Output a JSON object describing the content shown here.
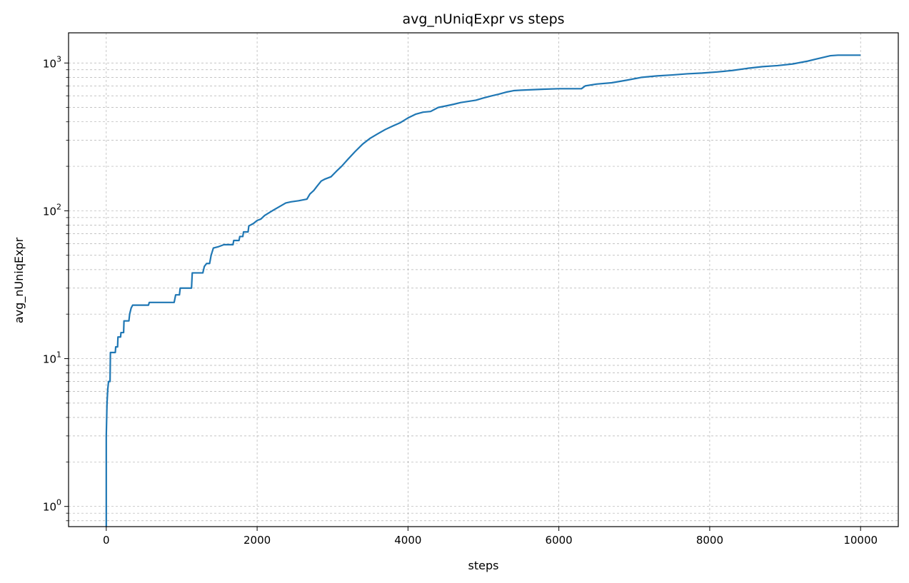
{
  "chart_data": {
    "type": "line",
    "title": "avg_nUniqExpr vs steps",
    "xlabel": "steps",
    "ylabel": "avg_nUniqExpr",
    "xlim": [
      -500,
      10500
    ],
    "ylim": [
      0.73,
      1600
    ],
    "yscale": "log",
    "grid": true,
    "x_ticks": [
      0,
      2000,
      4000,
      6000,
      8000,
      10000
    ],
    "x_tick_labels": [
      "0",
      "2000",
      "4000",
      "6000",
      "8000",
      "10000"
    ],
    "y_ticks": [
      1,
      10,
      100,
      1000
    ],
    "y_tick_labels": [
      {
        "base": "10",
        "exp": "0"
      },
      {
        "base": "10",
        "exp": "1"
      },
      {
        "base": "10",
        "exp": "2"
      },
      {
        "base": "10",
        "exp": "3"
      }
    ],
    "series": [
      {
        "color": "#1f77b4",
        "points": [
          [
            0,
            0.73
          ],
          [
            0,
            3
          ],
          [
            10,
            5
          ],
          [
            20,
            6.2
          ],
          [
            30,
            7
          ],
          [
            50,
            7
          ],
          [
            55,
            11
          ],
          [
            120,
            11
          ],
          [
            125,
            12
          ],
          [
            150,
            12
          ],
          [
            155,
            14
          ],
          [
            190,
            14
          ],
          [
            195,
            15
          ],
          [
            230,
            15
          ],
          [
            235,
            18
          ],
          [
            300,
            18
          ],
          [
            310,
            20
          ],
          [
            330,
            22
          ],
          [
            350,
            23
          ],
          [
            560,
            23
          ],
          [
            570,
            24
          ],
          [
            900,
            24
          ],
          [
            920,
            27
          ],
          [
            970,
            27
          ],
          [
            980,
            30
          ],
          [
            1130,
            30
          ],
          [
            1140,
            38
          ],
          [
            1280,
            38
          ],
          [
            1300,
            42
          ],
          [
            1330,
            44
          ],
          [
            1370,
            44
          ],
          [
            1390,
            50
          ],
          [
            1420,
            56
          ],
          [
            1480,
            57
          ],
          [
            1560,
            59
          ],
          [
            1680,
            59
          ],
          [
            1690,
            63
          ],
          [
            1760,
            63
          ],
          [
            1770,
            67
          ],
          [
            1810,
            67
          ],
          [
            1820,
            72
          ],
          [
            1880,
            72
          ],
          [
            1890,
            79
          ],
          [
            1950,
            82
          ],
          [
            2000,
            86
          ],
          [
            2050,
            88
          ],
          [
            2100,
            93
          ],
          [
            2200,
            100
          ],
          [
            2300,
            107
          ],
          [
            2380,
            113
          ],
          [
            2450,
            115
          ],
          [
            2550,
            117
          ],
          [
            2660,
            120
          ],
          [
            2700,
            130
          ],
          [
            2750,
            137
          ],
          [
            2800,
            148
          ],
          [
            2850,
            159
          ],
          [
            2900,
            164
          ],
          [
            2980,
            170
          ],
          [
            3050,
            185
          ],
          [
            3120,
            200
          ],
          [
            3200,
            222
          ],
          [
            3300,
            252
          ],
          [
            3400,
            283
          ],
          [
            3500,
            310
          ],
          [
            3600,
            332
          ],
          [
            3700,
            355
          ],
          [
            3800,
            375
          ],
          [
            3900,
            395
          ],
          [
            4000,
            425
          ],
          [
            4100,
            450
          ],
          [
            4200,
            465
          ],
          [
            4300,
            470
          ],
          [
            4400,
            500
          ],
          [
            4500,
            512
          ],
          [
            4600,
            525
          ],
          [
            4700,
            540
          ],
          [
            4800,
            550
          ],
          [
            4900,
            560
          ],
          [
            5000,
            580
          ],
          [
            5100,
            598
          ],
          [
            5200,
            615
          ],
          [
            5300,
            635
          ],
          [
            5400,
            650
          ],
          [
            5500,
            655
          ],
          [
            5800,
            665
          ],
          [
            6000,
            670
          ],
          [
            6300,
            670
          ],
          [
            6350,
            700
          ],
          [
            6500,
            720
          ],
          [
            6700,
            735
          ],
          [
            6900,
            765
          ],
          [
            7100,
            800
          ],
          [
            7300,
            818
          ],
          [
            7500,
            830
          ],
          [
            7700,
            845
          ],
          [
            7900,
            855
          ],
          [
            8100,
            870
          ],
          [
            8300,
            890
          ],
          [
            8500,
            920
          ],
          [
            8700,
            945
          ],
          [
            8900,
            960
          ],
          [
            9100,
            985
          ],
          [
            9300,
            1030
          ],
          [
            9500,
            1090
          ],
          [
            9600,
            1120
          ],
          [
            9700,
            1130
          ],
          [
            10000,
            1130
          ]
        ]
      }
    ]
  }
}
